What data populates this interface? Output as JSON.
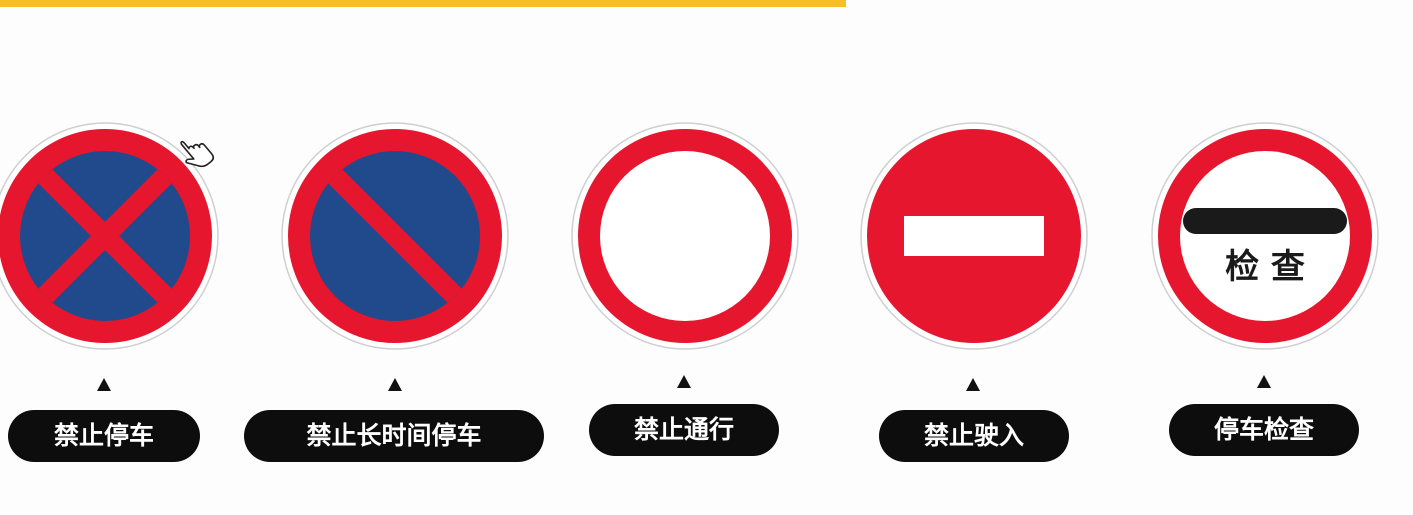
{
  "colors": {
    "accent_bar": "#f9bd2a",
    "sign_red": "#e5162d",
    "sign_blue": "#214a8c",
    "sign_white": "#ffffff",
    "label_bg": "#0d0d0d",
    "label_text": "#ffffff"
  },
  "signs": [
    {
      "id": "no-parking",
      "icon": "no-parking-sign-icon",
      "label": "禁止停车"
    },
    {
      "id": "no-long-term-parking",
      "icon": "no-long-term-parking-sign-icon",
      "label": "禁止长时间停车"
    },
    {
      "id": "no-traffic",
      "icon": "no-traffic-sign-icon",
      "label": "禁止通行"
    },
    {
      "id": "no-entry",
      "icon": "no-entry-sign-icon",
      "label": "禁止驶入"
    },
    {
      "id": "stop-for-inspection",
      "icon": "stop-for-inspection-sign-icon",
      "label": "停车检查",
      "sign_text": "检 查"
    }
  ],
  "cursor": {
    "icon": "hand-pointer-cursor-icon"
  }
}
